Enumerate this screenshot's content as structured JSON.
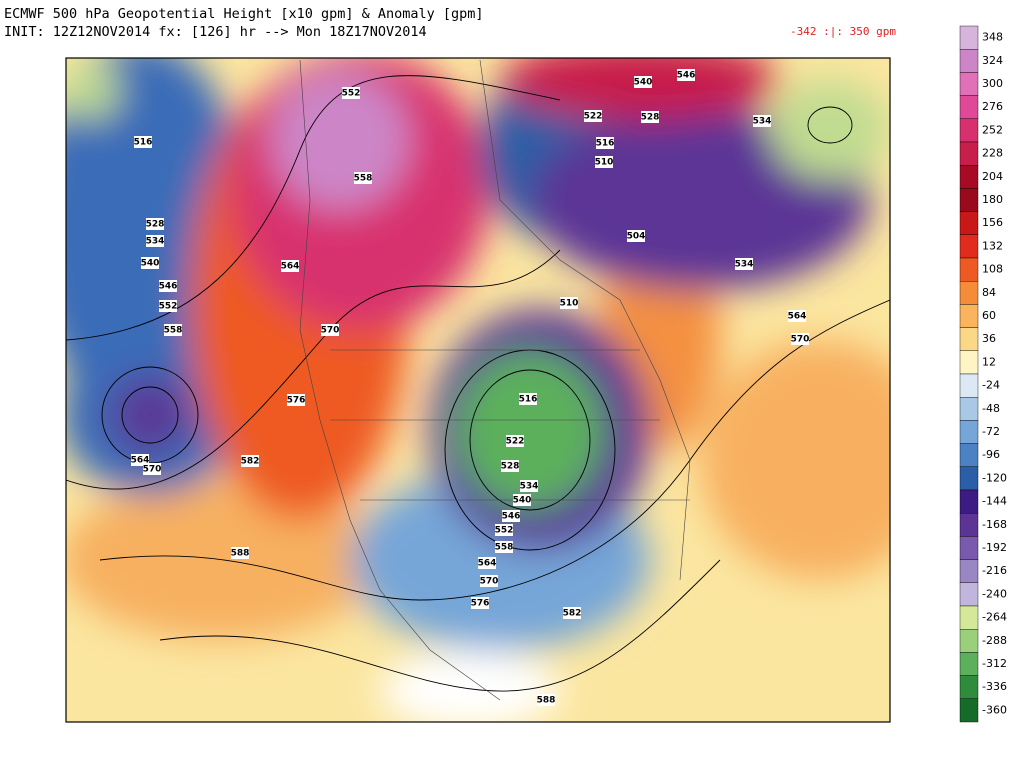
{
  "header": {
    "title_line1": "ECMWF 500 hPa Geopotential Height [x10 gpm] & Anomaly [gpm]",
    "title_line2": "INIT: 12Z12NOV2014 fx: [126] hr --> Mon 18Z17NOV2014",
    "range_text": "-342 :|:  350 gpm"
  },
  "colorbar": {
    "labels": [
      348,
      324,
      300,
      276,
      252,
      228,
      204,
      180,
      156,
      132,
      108,
      84,
      60,
      36,
      12,
      -24,
      -48,
      -72,
      -96,
      -120,
      -144,
      -168,
      -192,
      -216,
      -240,
      -264,
      -288,
      -312,
      -336,
      -360
    ],
    "colors": [
      "#d6b4dc",
      "#cc86c8",
      "#e070b8",
      "#e04898",
      "#d8306e",
      "#c81e4c",
      "#a80a26",
      "#980a1c",
      "#c81818",
      "#e02c1c",
      "#ee5a24",
      "#f58c38",
      "#f9b45c",
      "#fbd888",
      "#fff4c4",
      "#dce8f4",
      "#a8c8e6",
      "#76a6d8",
      "#4c82c4",
      "#2a5ea6",
      "#3c1c82",
      "#5c3496",
      "#7a5aac",
      "#9a86c2",
      "#c0b6dc",
      "#d4e89a",
      "#9ad07c",
      "#5cb05c",
      "#2e8c3c",
      "#146c28"
    ]
  },
  "map": {
    "contour_labels": [
      516,
      528,
      534,
      540,
      546,
      552,
      558,
      564,
      570,
      582,
      588,
      552,
      558,
      564,
      570,
      576,
      516,
      522,
      528,
      534,
      540,
      546,
      552,
      558,
      564,
      570,
      576,
      582,
      588,
      510,
      522,
      528,
      510,
      516,
      504,
      534,
      564,
      570,
      534,
      540,
      546
    ]
  }
}
